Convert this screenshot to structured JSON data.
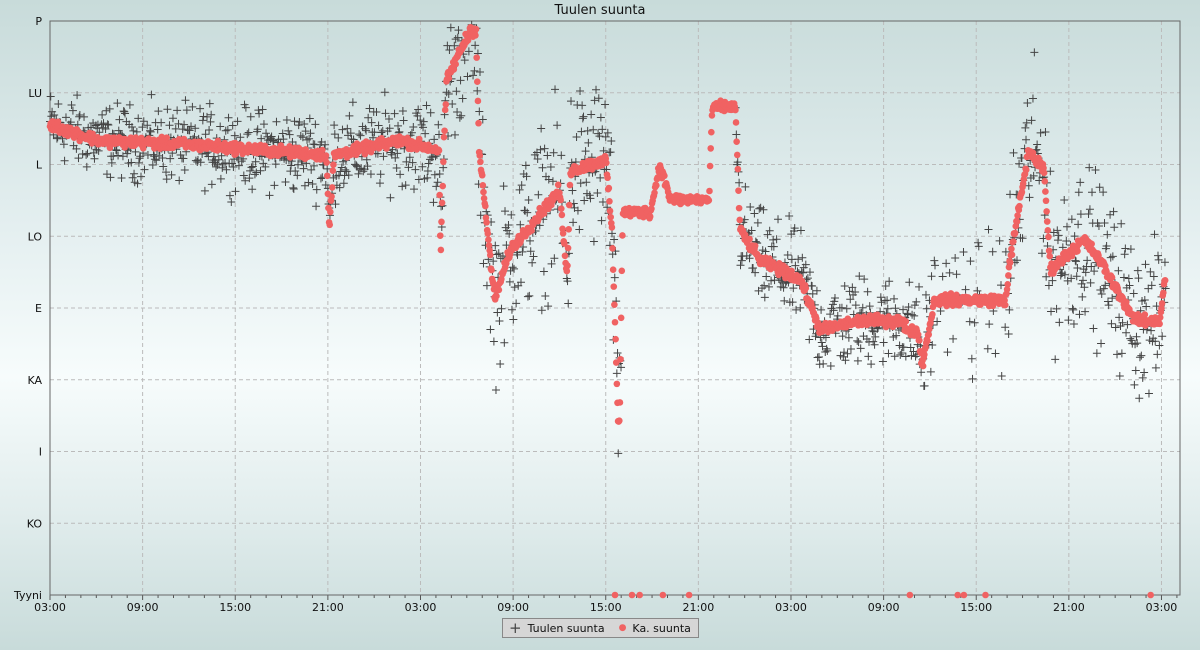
{
  "chart_data": {
    "type": "scatter",
    "title": "Tuulen suunta",
    "xlabel": "",
    "ylabel": "",
    "y_tick_labels": [
      {
        "deg": 360,
        "label": "P"
      },
      {
        "deg": 315,
        "label": "LU"
      },
      {
        "deg": 270,
        "label": "L"
      },
      {
        "deg": 225,
        "label": "LO"
      },
      {
        "deg": 180,
        "label": "E"
      },
      {
        "deg": 135,
        "label": "KA"
      },
      {
        "deg": 90,
        "label": "I"
      },
      {
        "deg": 45,
        "label": "KO"
      },
      {
        "deg": 0,
        "label": "Tyyni"
      }
    ],
    "ylim": [
      0,
      360
    ],
    "xlim_hours": [
      0,
      73.2
    ],
    "x_tick_labels": [
      "03:00",
      "09:00",
      "15:00",
      "21:00",
      "03:00",
      "09:00",
      "15:00",
      "21:00",
      "03:00",
      "09:00",
      "15:00",
      "21:00",
      "03:00"
    ],
    "x_tick_step_hours": 6,
    "grid": true,
    "legend_position": "bottom-center",
    "series": [
      {
        "name": "Tuulen suunta",
        "marker": "plus",
        "color": "#444444",
        "spread_deg_by_hour": [
          [
            0,
            35
          ],
          [
            24,
            45
          ],
          [
            27,
            80
          ],
          [
            37,
            90
          ],
          [
            44,
            50
          ],
          [
            55,
            45
          ],
          [
            62,
            90
          ],
          [
            73,
            70
          ]
        ]
      },
      {
        "name": "Ka. suunta",
        "marker": "circle",
        "color": "#f06262",
        "points_hours_deg": [
          [
            0,
            295
          ],
          [
            3.2,
            285
          ],
          [
            9.7,
            282
          ],
          [
            17.9,
            276
          ],
          [
            18.1,
            229
          ],
          [
            18.4,
            276
          ],
          [
            22.7,
            285
          ],
          [
            25.2,
            279
          ],
          [
            25.3,
            210
          ],
          [
            25.5,
            279
          ],
          [
            25.7,
            323
          ],
          [
            27.2,
            354
          ],
          [
            27.6,
            354
          ],
          [
            27.8,
            279
          ],
          [
            28.8,
            185
          ],
          [
            29.8,
            216
          ],
          [
            33,
            254
          ],
          [
            33.5,
            198
          ],
          [
            33.7,
            266
          ],
          [
            36,
            273
          ],
          [
            36.4,
            229
          ],
          [
            36.8,
            110
          ],
          [
            36.9,
            110
          ],
          [
            37.1,
            240
          ],
          [
            38.9,
            240
          ],
          [
            39.5,
            270
          ],
          [
            40.2,
            248
          ],
          [
            42.7,
            248
          ],
          [
            42.9,
            306
          ],
          [
            44.4,
            306
          ],
          [
            44.7,
            229
          ],
          [
            46,
            210
          ],
          [
            48.6,
            198
          ],
          [
            49.9,
            166
          ],
          [
            52.5,
            172
          ],
          [
            55,
            172
          ],
          [
            55.7,
            166
          ],
          [
            56.2,
            166
          ],
          [
            56.5,
            144
          ],
          [
            57.3,
            185
          ],
          [
            61.9,
            185
          ],
          [
            62.2,
            210
          ],
          [
            63.4,
            279
          ],
          [
            64.4,
            266
          ],
          [
            64.8,
            204
          ],
          [
            67,
            223
          ],
          [
            68,
            210
          ],
          [
            70.3,
            172
          ],
          [
            71.9,
            172
          ],
          [
            72.2,
            198
          ]
        ],
        "calm_hours": [
          36.6,
          37.7,
          38.2,
          39.7,
          41.4,
          55.7,
          58.8,
          59.2,
          60.6,
          71.3
        ]
      }
    ]
  },
  "legend": {
    "raw_label": "Tuulen suunta",
    "avg_label": "Ka. suunta"
  }
}
